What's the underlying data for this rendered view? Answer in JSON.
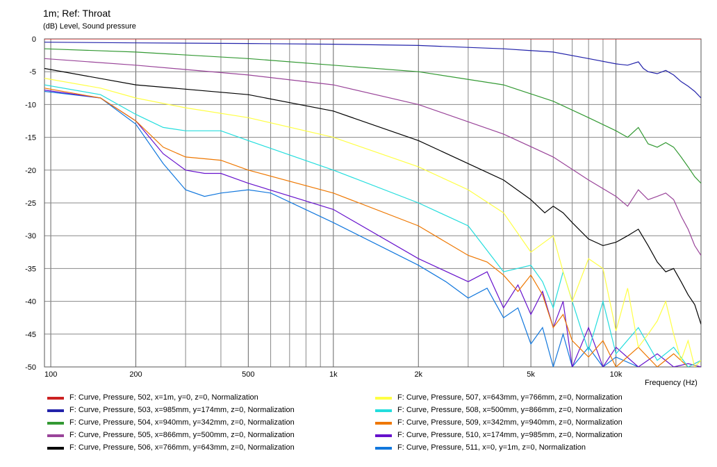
{
  "chart_data": {
    "type": "line",
    "title": "1m; Ref: Throat",
    "subtitle": "(dB)  Level, Sound pressure",
    "xlabel": "Frequency  (Hz)",
    "xscale": "log",
    "xlim": [
      95,
      20000
    ],
    "ylim": [
      -50,
      0
    ],
    "grid": true,
    "legend_position": "bottom",
    "y_ticks": [
      "0",
      "-5",
      "-10",
      "-15",
      "-20",
      "-25",
      "-30",
      "-35",
      "-40",
      "-45",
      "-50"
    ],
    "x_ticks": [
      {
        "value": 100,
        "label": "100"
      },
      {
        "value": 200,
        "label": "200"
      },
      {
        "value": 500,
        "label": "500"
      },
      {
        "value": 1000,
        "label": "1k"
      },
      {
        "value": 2000,
        "label": "2k"
      },
      {
        "value": 5000,
        "label": "5k"
      },
      {
        "value": 10000,
        "label": "10k"
      }
    ],
    "series": [
      {
        "name": "F: Curve, Pressure, 502, x=1m, y=0, z=0, Normalization",
        "color": "#cc2222",
        "x": [
          95,
          20000
        ],
        "y": [
          0,
          0
        ]
      },
      {
        "name": "F: Curve, Pressure, 503, x=985mm, y=174mm, z=0, Normalization",
        "color": "#2222aa",
        "x": [
          95,
          200,
          500,
          1000,
          2000,
          4000,
          6000,
          8000,
          10000,
          11000,
          12000,
          12500,
          13000,
          14000,
          15000,
          16000,
          17000,
          18000,
          19000,
          20000
        ],
        "y": [
          -0.5,
          -0.6,
          -0.7,
          -0.8,
          -1.0,
          -1.5,
          -2.0,
          -3.0,
          -3.8,
          -4.0,
          -3.5,
          -4.5,
          -5.0,
          -5.3,
          -4.8,
          -5.5,
          -6.5,
          -7.2,
          -8.0,
          -9.0
        ]
      },
      {
        "name": "F: Curve, Pressure, 504, x=940mm, y=342mm, z=0, Normalization",
        "color": "#339933",
        "x": [
          95,
          200,
          500,
          1000,
          2000,
          4000,
          6000,
          8000,
          10000,
          11000,
          12000,
          13000,
          14000,
          15000,
          16000,
          17000,
          18000,
          19000,
          20000
        ],
        "y": [
          -1.5,
          -2.0,
          -3.0,
          -4.0,
          -5.0,
          -7.0,
          -9.5,
          -12.0,
          -14.0,
          -15.0,
          -13.5,
          -16.0,
          -16.5,
          -15.8,
          -16.5,
          -18.0,
          -19.5,
          -21.0,
          -22.0
        ]
      },
      {
        "name": "F: Curve, Pressure, 505, x=866mm, y=500mm, z=0, Normalization",
        "color": "#994499",
        "x": [
          95,
          200,
          500,
          1000,
          2000,
          4000,
          6000,
          8000,
          10000,
          11000,
          12000,
          13000,
          14000,
          15000,
          16000,
          17000,
          18000,
          19000,
          20000
        ],
        "y": [
          -3.0,
          -4.0,
          -5.5,
          -7.0,
          -10.0,
          -14.5,
          -18.0,
          -21.5,
          -24.0,
          -25.5,
          -23.0,
          -24.5,
          -24.0,
          -23.5,
          -24.5,
          -27.0,
          -29.0,
          -31.5,
          -33.0
        ]
      },
      {
        "name": "F: Curve, Pressure, 506, x=766mm, y=643mm, z=0, Normalization",
        "color": "#000000",
        "x": [
          95,
          200,
          500,
          1000,
          2000,
          3000,
          4000,
          5000,
          5600,
          6000,
          6500,
          7000,
          8000,
          9000,
          10000,
          11000,
          12000,
          13000,
          14000,
          15000,
          16000,
          17000,
          18000,
          19000,
          20000
        ],
        "y": [
          -4.5,
          -7.0,
          -8.5,
          -11.0,
          -15.5,
          -19.0,
          -21.5,
          -24.5,
          -26.5,
          -25.5,
          -26.5,
          -28.0,
          -30.5,
          -31.5,
          -31.0,
          -30.0,
          -29.0,
          -31.5,
          -34.0,
          -35.5,
          -35.0,
          -37.0,
          -39.0,
          -40.5,
          -43.5
        ]
      },
      {
        "name": "F: Curve, Pressure, 507, x=643mm, y=766mm, z=0, Normalization",
        "color": "#ffff44",
        "x": [
          95,
          150,
          200,
          300,
          500,
          1000,
          2000,
          3000,
          4000,
          5000,
          6000,
          6500,
          7000,
          8000,
          9000,
          10000,
          11000,
          12000,
          13000,
          14000,
          15000,
          16000,
          17000,
          18000,
          19000,
          20000
        ],
        "y": [
          -6.0,
          -7.5,
          -9.0,
          -10.5,
          -12.0,
          -15.0,
          -19.5,
          -23.0,
          -26.5,
          -32.5,
          -30.0,
          -35.5,
          -40.0,
          -33.5,
          -35.0,
          -44.5,
          -38.0,
          -47.0,
          -45.0,
          -43.0,
          -40.0,
          -45.0,
          -49.0,
          -46.0,
          -50.0,
          -49.0
        ]
      },
      {
        "name": "F: Curve, Pressure, 508, x=500mm, y=866mm, z=0, Normalization",
        "color": "#22dddd",
        "x": [
          95,
          150,
          200,
          250,
          300,
          400,
          500,
          1000,
          2000,
          3000,
          4000,
          5000,
          5500,
          6000,
          6500,
          7000,
          7500,
          8000,
          9000,
          10000,
          12000,
          14000,
          16000,
          18000,
          20000
        ],
        "y": [
          -7.0,
          -8.5,
          -11.5,
          -13.5,
          -14.0,
          -14.0,
          -15.5,
          -20.0,
          -25.0,
          -28.5,
          -35.5,
          -34.5,
          -37.0,
          -41.0,
          -35.5,
          -40.0,
          -44.0,
          -47.5,
          -40.0,
          -48.0,
          -44.0,
          -49.0,
          -47.0,
          -50.0,
          -49.0
        ]
      },
      {
        "name": "F: Curve, Pressure, 509, x=342mm, y=940mm, z=0, Normalization",
        "color": "#ee7700",
        "x": [
          95,
          150,
          200,
          250,
          300,
          400,
          500,
          1000,
          2000,
          3000,
          3500,
          4000,
          4500,
          5000,
          5500,
          6000,
          6500,
          7000,
          8000,
          9000,
          10000,
          12000,
          14000,
          16000,
          18000,
          20000
        ],
        "y": [
          -7.5,
          -9.0,
          -12.5,
          -16.5,
          -18.0,
          -18.5,
          -20.0,
          -23.5,
          -28.5,
          -33.0,
          -34.0,
          -36.0,
          -38.5,
          -36.0,
          -39.0,
          -44.0,
          -42.0,
          -46.0,
          -48.5,
          -46.0,
          -50.0,
          -47.0,
          -50.0,
          -48.0,
          -50.0,
          -49.0
        ]
      },
      {
        "name": "F: Curve, Pressure, 510, x=174mm, y=985mm, z=0, Normalization",
        "color": "#6611cc",
        "x": [
          95,
          150,
          200,
          250,
          300,
          350,
          400,
          500,
          1000,
          2000,
          3000,
          3500,
          4000,
          4500,
          5000,
          5500,
          6000,
          6500,
          7000,
          8000,
          9000,
          10000,
          12000,
          14000,
          16000,
          18000,
          20000
        ],
        "y": [
          -7.8,
          -9.0,
          -12.5,
          -17.5,
          -20.0,
          -20.5,
          -20.5,
          -22.0,
          -26.0,
          -33.5,
          -37.0,
          -35.5,
          -41.0,
          -37.5,
          -42.0,
          -38.5,
          -44.0,
          -40.0,
          -50.0,
          -44.0,
          -50.0,
          -47.0,
          -50.0,
          -48.0,
          -50.0,
          -49.5,
          -50.0
        ]
      },
      {
        "name": "F: Curve, Pressure, 511, x=0, y=1m, z=0, Normalization",
        "color": "#1177dd",
        "x": [
          95,
          150,
          200,
          250,
          300,
          350,
          400,
          500,
          600,
          1000,
          2000,
          2500,
          3000,
          3500,
          4000,
          4500,
          5000,
          5500,
          6000,
          6500,
          7000,
          8000,
          9000,
          10000,
          12000
        ],
        "y": [
          -8.0,
          -9.0,
          -13.0,
          -19.0,
          -23.0,
          -24.0,
          -23.5,
          -23.0,
          -23.5,
          -28.0,
          -34.5,
          -37.0,
          -39.5,
          -38.0,
          -42.5,
          -41.0,
          -46.5,
          -44.0,
          -50.0,
          -45.0,
          -50.0,
          -47.0,
          -50.0,
          -48.5,
          -50.0
        ]
      }
    ]
  }
}
